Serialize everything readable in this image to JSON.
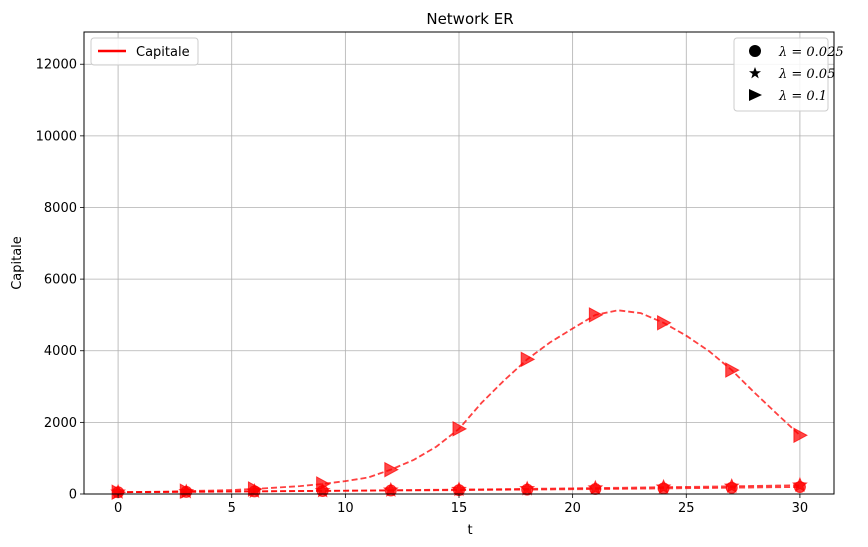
{
  "chart_data": {
    "type": "line",
    "title": "Network ER",
    "xlabel": "t",
    "ylabel": "Capitale",
    "xlim": [
      -1.5,
      31.5
    ],
    "ylim": [
      0,
      12900
    ],
    "xticks": [
      0,
      5,
      10,
      15,
      20,
      25,
      30
    ],
    "yticks": [
      0,
      2000,
      4000,
      6000,
      8000,
      10000,
      12000
    ],
    "grid": true,
    "color": "#ff0000",
    "legends": [
      {
        "placement": "top-left",
        "entries": [
          {
            "label": "Capitale",
            "style": "line"
          }
        ]
      },
      {
        "placement": "top-right",
        "entries": [
          {
            "label": "λ = 0.025",
            "marker": "circle"
          },
          {
            "label": "λ = 0.05",
            "marker": "star"
          },
          {
            "label": "λ = 0.1",
            "marker": "triangle-right"
          }
        ]
      }
    ],
    "series": [
      {
        "lambda": "0.025",
        "marker": "circle",
        "x": [
          0,
          1,
          2,
          3,
          4,
          5,
          6,
          7,
          8,
          9,
          10,
          11,
          12,
          13,
          14,
          15,
          16,
          17,
          18,
          19,
          20,
          21,
          22,
          23,
          24,
          25,
          26,
          27,
          28,
          29,
          30
        ],
        "y": [
          50,
          53,
          56,
          60,
          64,
          68,
          72,
          76,
          80,
          84,
          88,
          92,
          96,
          100,
          104,
          108,
          112,
          117,
          122,
          127,
          132,
          138,
          144,
          150,
          156,
          162,
          168,
          175,
          182,
          189,
          196
        ],
        "marker_x": [
          0,
          3,
          6,
          9,
          12,
          15,
          18,
          21,
          24,
          27,
          30
        ],
        "marker_y": [
          50,
          60,
          72,
          84,
          96,
          108,
          122,
          138,
          156,
          175,
          196
        ]
      },
      {
        "lambda": "0.05",
        "marker": "star",
        "x": [
          0,
          1,
          2,
          3,
          4,
          5,
          6,
          7,
          8,
          9,
          10,
          11,
          12,
          13,
          14,
          15,
          16,
          17,
          18,
          19,
          20,
          21,
          22,
          23,
          24,
          25,
          26,
          27,
          28,
          29,
          30
        ],
        "y": [
          50,
          54,
          58,
          62,
          66,
          70,
          75,
          80,
          85,
          90,
          95,
          100,
          106,
          112,
          118,
          124,
          130,
          137,
          144,
          151,
          158,
          166,
          174,
          182,
          190,
          198,
          206,
          215,
          225,
          235,
          245
        ],
        "marker_x": [
          0,
          3,
          6,
          9,
          12,
          15,
          18,
          21,
          24,
          27,
          30
        ],
        "marker_y": [
          50,
          62,
          75,
          90,
          106,
          124,
          144,
          166,
          190,
          215,
          245
        ]
      },
      {
        "lambda": "0.1",
        "marker": "triangle-right",
        "x": [
          0,
          1,
          2,
          3,
          4,
          5,
          6,
          7,
          8,
          9,
          10,
          11,
          12,
          13,
          14,
          15,
          16,
          17,
          18,
          19,
          20,
          21,
          22,
          23,
          24,
          25,
          26,
          27,
          28,
          29,
          30
        ],
        "y": [
          50,
          58,
          66,
          80,
          95,
          112,
          140,
          180,
          220,
          280,
          360,
          460,
          680,
          950,
          1320,
          1820,
          2550,
          3180,
          3760,
          4230,
          4620,
          5000,
          5130,
          5050,
          4780,
          4420,
          3990,
          3460,
          2830,
          2230,
          1640
        ],
        "marker_x": [
          0,
          3,
          6,
          9,
          12,
          15,
          18,
          21,
          24,
          27,
          30
        ],
        "marker_y": [
          50,
          80,
          140,
          280,
          680,
          1820,
          3760,
          5000,
          4780,
          3460,
          1640
        ]
      }
    ]
  }
}
